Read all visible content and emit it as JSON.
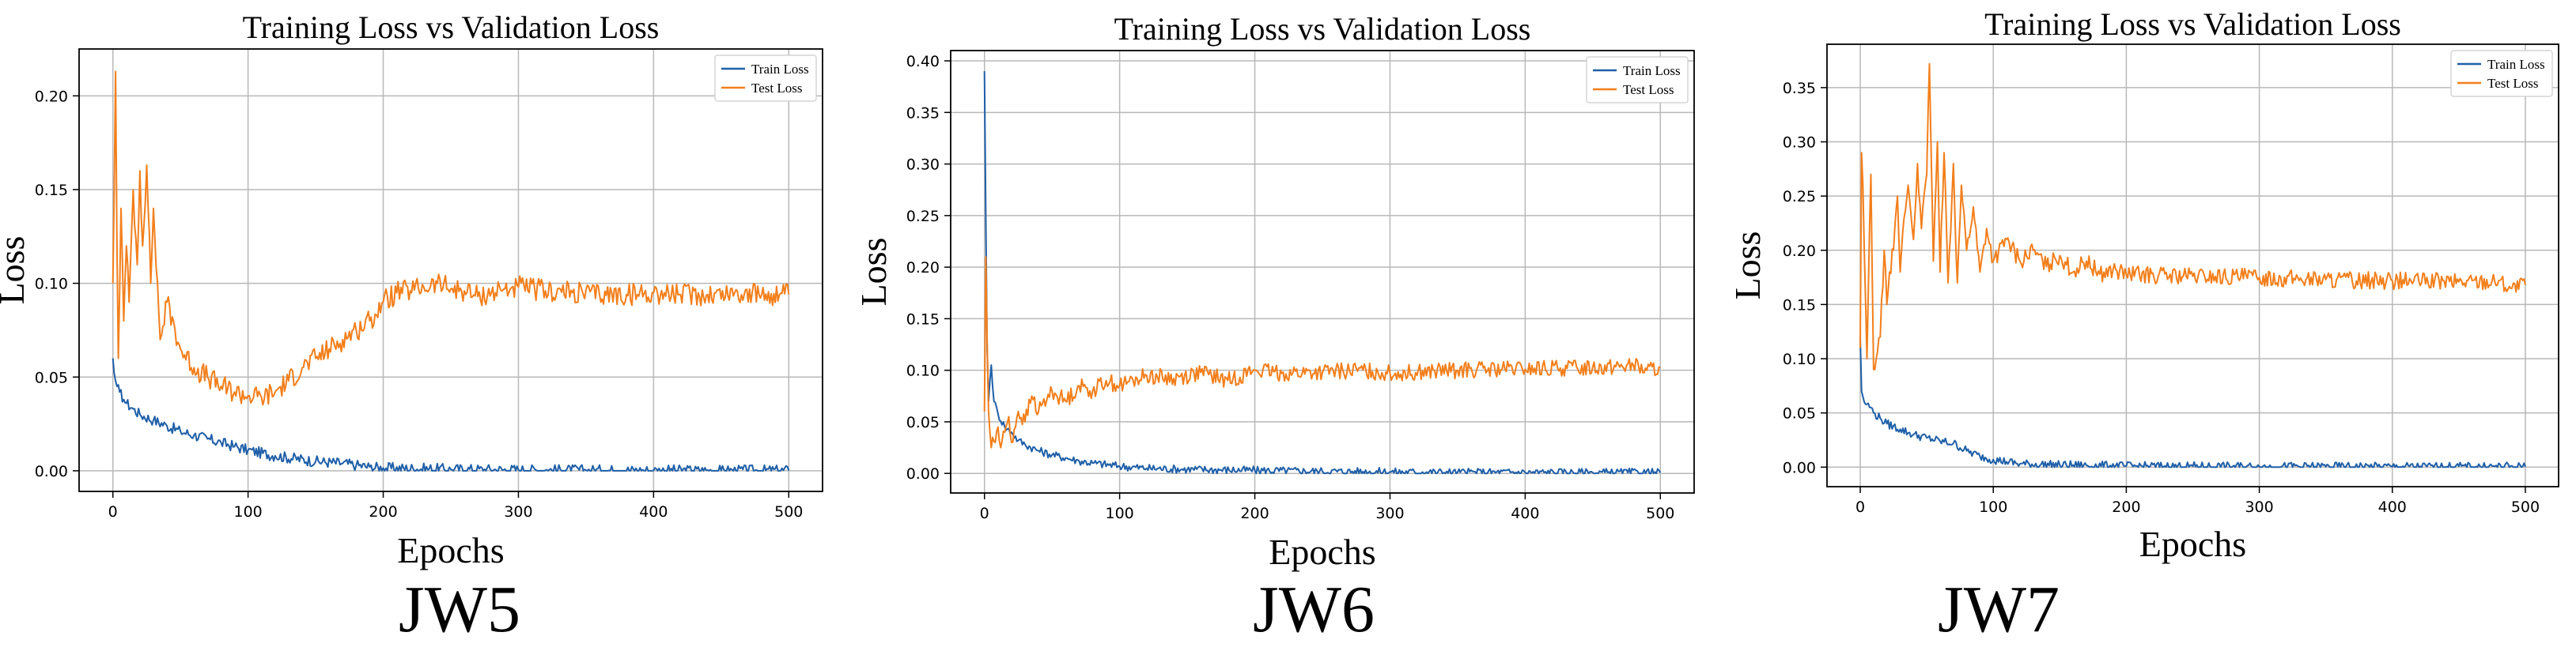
{
  "figure": {
    "captions": [
      "JW5",
      "JW6",
      "JW7"
    ]
  },
  "colors": {
    "train": "#1f5fa8",
    "test": "#f37f1b",
    "grid": "#b8b8b8",
    "axis": "#000000"
  },
  "chart_data": [
    {
      "type": "line",
      "title": "Training Loss vs Validation Loss",
      "xlabel": "Epochs",
      "ylabel": "Loss",
      "xlim": [
        -25,
        525
      ],
      "ylim": [
        -0.011,
        0.225
      ],
      "xticks": [
        0,
        100,
        200,
        300,
        400,
        500
      ],
      "xtick_labels": [
        "0",
        "100",
        "200",
        "300",
        "400",
        "500"
      ],
      "yticks": [
        0.0,
        0.05,
        0.1,
        0.15,
        0.2
      ],
      "ytick_labels": [
        "0.00",
        "0.05",
        "0.10",
        "0.15",
        "0.20"
      ],
      "grid": true,
      "legend_position": "top-right",
      "series": [
        {
          "name": "Train Loss",
          "key": "train",
          "x": [
            0,
            1,
            2,
            3,
            5,
            8,
            10,
            15,
            20,
            30,
            40,
            50,
            60,
            70,
            80,
            90,
            100,
            120,
            150,
            170,
            180,
            190,
            200,
            250,
            300,
            350,
            400,
            450,
            500
          ],
          "y": [
            0.06,
            0.052,
            0.048,
            0.045,
            0.042,
            0.038,
            0.036,
            0.033,
            0.03,
            0.027,
            0.024,
            0.021,
            0.019,
            0.017,
            0.015,
            0.013,
            0.011,
            0.008,
            0.005,
            0.004,
            0.003,
            0.002,
            0.0015,
            0.0008,
            0.0005,
            0.0003,
            0.0002,
            0.0001,
            0.0001
          ]
        },
        {
          "name": "Test Loss",
          "key": "test",
          "x": [
            0,
            1,
            2,
            3,
            4,
            6,
            8,
            10,
            12,
            15,
            18,
            20,
            22,
            25,
            28,
            30,
            35,
            40,
            50,
            60,
            70,
            80,
            90,
            100,
            110,
            120,
            130,
            140,
            150,
            160,
            170,
            180,
            190,
            200,
            210,
            220,
            230,
            240,
            250,
            260,
            270,
            280,
            290,
            300,
            320,
            340,
            360,
            380,
            400,
            420,
            440,
            460,
            480,
            500
          ],
          "y": [
            0.1,
            0.15,
            0.213,
            0.12,
            0.06,
            0.14,
            0.08,
            0.12,
            0.09,
            0.15,
            0.11,
            0.16,
            0.12,
            0.163,
            0.1,
            0.14,
            0.07,
            0.09,
            0.065,
            0.055,
            0.05,
            0.045,
            0.042,
            0.04,
            0.039,
            0.042,
            0.048,
            0.055,
            0.06,
            0.065,
            0.07,
            0.075,
            0.08,
            0.09,
            0.095,
            0.096,
            0.098,
            0.1,
            0.097,
            0.096,
            0.093,
            0.095,
            0.097,
            0.098,
            0.096,
            0.095,
            0.094,
            0.094,
            0.095,
            0.094,
            0.094,
            0.095,
            0.094,
            0.094
          ]
        }
      ]
    },
    {
      "type": "line",
      "title": "Training Loss vs Validation Loss",
      "xlabel": "Epochs",
      "ylabel": "Loss",
      "xlim": [
        -25,
        525
      ],
      "ylim": [
        -0.019,
        0.41
      ],
      "xticks": [
        0,
        100,
        200,
        300,
        400,
        500
      ],
      "xtick_labels": [
        "0",
        "100",
        "200",
        "300",
        "400",
        "500"
      ],
      "yticks": [
        0.0,
        0.05,
        0.1,
        0.15,
        0.2,
        0.25,
        0.3,
        0.35,
        0.4
      ],
      "ytick_labels": [
        "0.00",
        "0.05",
        "0.10",
        "0.15",
        "0.20",
        "0.25",
        "0.30",
        "0.35",
        "0.40"
      ],
      "grid": true,
      "legend_position": "top-right",
      "series": [
        {
          "name": "Train Loss",
          "key": "train",
          "x": [
            0,
            1,
            2,
            3,
            4,
            5,
            7,
            10,
            15,
            20,
            25,
            30,
            40,
            50,
            60,
            70,
            80,
            100,
            120,
            150,
            200,
            250,
            300,
            350,
            400,
            450,
            500
          ],
          "y": [
            0.39,
            0.25,
            0.12,
            0.07,
            0.09,
            0.105,
            0.07,
            0.058,
            0.045,
            0.04,
            0.032,
            0.028,
            0.022,
            0.018,
            0.015,
            0.012,
            0.01,
            0.007,
            0.005,
            0.004,
            0.003,
            0.002,
            0.0015,
            0.001,
            0.001,
            0.0008,
            0.0008
          ]
        },
        {
          "name": "Test Loss",
          "key": "test",
          "x": [
            0,
            1,
            2,
            3,
            4,
            5,
            6,
            8,
            10,
            12,
            15,
            18,
            20,
            25,
            30,
            35,
            40,
            50,
            60,
            70,
            80,
            90,
            100,
            110,
            120,
            140,
            160,
            180,
            200,
            220,
            250,
            280,
            300,
            350,
            400,
            450,
            480,
            490,
            500
          ],
          "y": [
            0.06,
            0.21,
            0.13,
            0.06,
            0.04,
            0.025,
            0.035,
            0.03,
            0.045,
            0.025,
            0.04,
            0.055,
            0.03,
            0.06,
            0.05,
            0.075,
            0.06,
            0.08,
            0.07,
            0.085,
            0.08,
            0.09,
            0.085,
            0.09,
            0.095,
            0.092,
            0.098,
            0.09,
            0.1,
            0.097,
            0.098,
            0.1,
            0.097,
            0.1,
            0.101,
            0.103,
            0.105,
            0.1,
            0.103
          ]
        }
      ]
    },
    {
      "type": "line",
      "title": "Training Loss vs Validation Loss",
      "xlabel": "Epochs",
      "ylabel": "Loss",
      "xlim": [
        -25,
        525
      ],
      "ylim": [
        -0.018,
        0.39
      ],
      "xticks": [
        0,
        100,
        200,
        300,
        400,
        500
      ],
      "xtick_labels": [
        "0",
        "100",
        "200",
        "300",
        "400",
        "500"
      ],
      "yticks": [
        0.0,
        0.05,
        0.1,
        0.15,
        0.2,
        0.25,
        0.3,
        0.35
      ],
      "ytick_labels": [
        "0.00",
        "0.05",
        "0.10",
        "0.15",
        "0.20",
        "0.25",
        "0.30",
        "0.35"
      ],
      "grid": true,
      "legend_position": "top-right",
      "series": [
        {
          "name": "Train Loss",
          "key": "train",
          "x": [
            0,
            1,
            2,
            3,
            5,
            8,
            10,
            15,
            20,
            30,
            40,
            50,
            60,
            70,
            80,
            90,
            100,
            110,
            120,
            150,
            200,
            250,
            300,
            400,
            500
          ],
          "y": [
            0.12,
            0.07,
            0.065,
            0.06,
            0.058,
            0.055,
            0.05,
            0.045,
            0.04,
            0.035,
            0.03,
            0.027,
            0.024,
            0.022,
            0.015,
            0.01,
            0.007,
            0.005,
            0.003,
            0.002,
            0.001,
            0.0008,
            0.0005,
            0.0004,
            0.0004
          ]
        },
        {
          "name": "Test Loss",
          "key": "test",
          "x": [
            0,
            1,
            2,
            3,
            5,
            8,
            10,
            12,
            15,
            18,
            20,
            22,
            25,
            28,
            30,
            33,
            36,
            40,
            43,
            46,
            50,
            52,
            55,
            58,
            60,
            63,
            66,
            70,
            73,
            76,
            80,
            85,
            90,
            95,
            100,
            110,
            120,
            130,
            140,
            150,
            160,
            170,
            180,
            190,
            200,
            250,
            300,
            350,
            400,
            450,
            480,
            490,
            500
          ],
          "y": [
            0.11,
            0.29,
            0.26,
            0.2,
            0.1,
            0.27,
            0.09,
            0.1,
            0.12,
            0.2,
            0.15,
            0.18,
            0.2,
            0.25,
            0.18,
            0.23,
            0.26,
            0.21,
            0.28,
            0.22,
            0.27,
            0.372,
            0.19,
            0.3,
            0.18,
            0.29,
            0.17,
            0.28,
            0.17,
            0.26,
            0.2,
            0.24,
            0.18,
            0.22,
            0.19,
            0.21,
            0.19,
            0.2,
            0.185,
            0.195,
            0.18,
            0.19,
            0.178,
            0.182,
            0.178,
            0.176,
            0.175,
            0.173,
            0.172,
            0.171,
            0.172,
            0.165,
            0.168
          ]
        }
      ]
    }
  ]
}
